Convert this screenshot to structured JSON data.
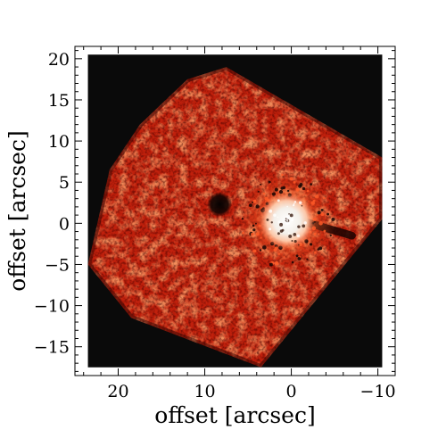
{
  "chart_data": {
    "type": "heatmap",
    "title": "",
    "xlabel": "offset [arcsec]",
    "ylabel": "offset [arcsec]",
    "xlim": [
      25.0,
      -12.0
    ],
    "ylim": [
      -18.5,
      21.5
    ],
    "x_ticks": [
      20,
      10,
      0,
      -10
    ],
    "x_tick_labels": [
      "20",
      "10",
      "0",
      "−10"
    ],
    "y_ticks": [
      -15,
      -10,
      -5,
      0,
      5,
      10,
      15,
      20
    ],
    "y_tick_labels": [
      "−15",
      "−10",
      "−5",
      "0",
      "5",
      "10",
      "15",
      "20"
    ],
    "image_extent": {
      "x": [
        23.5,
        -10.5
      ],
      "y": [
        -17.5,
        20.5
      ]
    },
    "footprint": [
      [
        7.5,
        19.0
      ],
      [
        -10.5,
        8.0
      ],
      [
        -10.5,
        0.5
      ],
      [
        3.5,
        -17.5
      ],
      [
        18.5,
        -11.5
      ],
      [
        23.5,
        -5.0
      ],
      [
        21.0,
        6.5
      ],
      [
        17.5,
        12.0
      ],
      [
        12.0,
        17.5
      ]
    ],
    "features": {
      "central_source": {
        "x": 0.5,
        "y": 0.3,
        "radius": 3.5
      },
      "dark_spot": {
        "x": 8.3,
        "y": 2.3,
        "radius": 1.2
      },
      "dark_streak": {
        "x1": -1.5,
        "y1": 0.2,
        "x2": -7.0,
        "y2": -1.5
      }
    },
    "colors": {
      "background": "#0a0a0a",
      "emission": "#c0200c",
      "bright": "#ff5a28",
      "core": "#ffffff",
      "axes": "#000000"
    },
    "grid": false,
    "legend": "none"
  }
}
